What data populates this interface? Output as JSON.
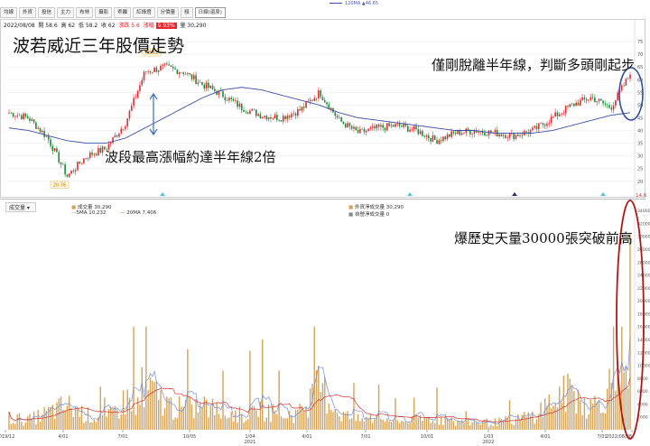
{
  "toolbar": {
    "buttons": [
      "均線",
      "外資",
      "投信",
      "主力",
      "布林",
      "攝影",
      "乖離",
      "紅綠燈",
      "分價量",
      "殺",
      "日線(還原)"
    ]
  },
  "info": {
    "date": "2022/08/08",
    "open": "開 58.6",
    "high": "高 62",
    "low": "低 58.2",
    "close": "收 62",
    "change": "漲跌 5.6",
    "pct_label": "漲幅",
    "pct": "9.93%",
    "volume": "量 30,290"
  },
  "ma_legend": "120MA ▲46.65",
  "annotations": {
    "title": "波若威近三年股價走勢",
    "breakout": "僅剛脫離半年線，判斷多頭剛起步",
    "rally": "波段最高漲幅約達半年線2倍",
    "volume_note": "爆歷史天量30000張突破前高"
  },
  "price_labels": {
    "high": "68.62",
    "low": "20.76",
    "right_edge": "14.6"
  },
  "volume_panel": {
    "selector": "成交量",
    "legend_volume": "成交量 30,290",
    "legend_ma5": "5MA 10,232",
    "legend_ma20": "20MA 7,406",
    "legend_foreign": "外資淨成交量 30,290",
    "legend_prop": "自營淨成交量 0"
  },
  "colors": {
    "up": "#e8262e",
    "down": "#1d8a3a",
    "ma120": "#3b4ea8",
    "volume": "#d4a35a",
    "vma5": "#6f8fd8",
    "vma20": "#d83030",
    "circle": "#b01818"
  },
  "chart_data": [
    {
      "type": "line",
      "title": "波若威近三年股價走勢",
      "y_ticks": [
        20,
        25,
        30,
        35,
        40,
        45,
        50,
        55,
        60,
        65,
        70,
        75
      ],
      "ylim": [
        14.6,
        80
      ],
      "x_ticks": [
        "2019/12",
        "4/01",
        "7/01",
        "10/05",
        "1/04 2021",
        "4/01",
        "7/01",
        "10/01",
        "1/03 2022",
        "4/01",
        "7/01",
        "2022/08/08"
      ],
      "series": [
        {
          "name": "收盤價",
          "x": [
            "2019/12",
            "2020/01",
            "2020/02",
            "2020/03",
            "2020/04",
            "2020/05",
            "2020/06",
            "2020/07",
            "2020/08",
            "2020/09",
            "2020/10",
            "2020/11",
            "2020/12",
            "2021/01",
            "2021/02",
            "2021/03",
            "2021/04",
            "2021/05",
            "2021/06",
            "2021/07",
            "2021/08",
            "2021/09",
            "2021/10",
            "2021/11",
            "2021/12",
            "2022/01",
            "2022/02",
            "2022/03",
            "2022/04",
            "2022/05",
            "2022/06",
            "2022/07",
            "2022/08"
          ],
          "values": [
            47,
            45,
            37,
            22,
            30,
            33,
            43,
            63,
            65,
            63,
            58,
            54,
            49,
            46,
            45,
            48,
            55,
            44,
            39,
            41,
            42,
            40,
            36,
            39,
            40,
            39,
            38,
            40,
            45,
            50,
            53,
            49,
            62
          ]
        },
        {
          "name": "120MA",
          "values": [
            41,
            40,
            38,
            36,
            35,
            35,
            37,
            41,
            45,
            49,
            53,
            56,
            57,
            56,
            54,
            52,
            50,
            47,
            45,
            44,
            43,
            42,
            41,
            40,
            40,
            39,
            39,
            39,
            40,
            42,
            44,
            46,
            47
          ]
        }
      ],
      "annotations": {
        "high": 68.62,
        "low": 20.76
      }
    },
    {
      "type": "bar",
      "title": "成交量",
      "y_ticks": [
        2000,
        4000,
        6000,
        8000,
        10000,
        12000,
        14000,
        16000,
        18000,
        20000,
        22000,
        24000,
        26000,
        28000,
        30000,
        32000,
        34000
      ],
      "ylim": [
        0,
        35000
      ],
      "series": [
        {
          "name": "成交量",
          "values": [
            2500,
            2000,
            3500,
            5000,
            3000,
            2200,
            6000,
            9000,
            5500,
            4000,
            5000,
            3500,
            3000,
            4500,
            3000,
            3500,
            9000,
            3500,
            2000,
            2500,
            1800,
            2000,
            2500,
            1500,
            1600,
            1500,
            2000,
            3000,
            6000,
            8000,
            4500,
            9000,
            30290
          ]
        }
      ]
    }
  ]
}
